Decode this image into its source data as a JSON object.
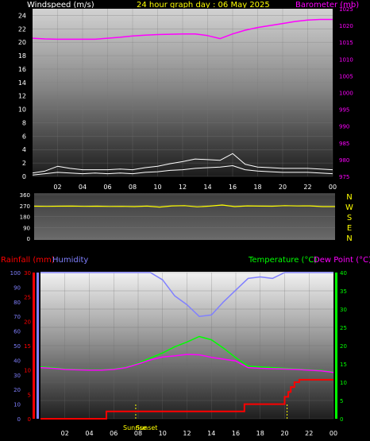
{
  "header": {
    "wind_label": "Windspeed (m/s)",
    "title": "24 hour graph day : 06 May 2025",
    "baro_label": "Barometer (mb)"
  },
  "colors": {
    "wind": "#ffffff",
    "baro": "#ff00ff",
    "winddir": "#ffff00",
    "humidity": "#8080ff",
    "temperature": "#00ff00",
    "dewpoint": "#ff00ff",
    "rainfall": "#ff0000",
    "axis_labels": "#ffffff",
    "temp_axis": "#00ff00",
    "sun_marker": "#ffff00"
  },
  "footer": {
    "rain_label": "Rainfall (mm)",
    "hum_label": "Humidity",
    "temp_label": "Temperature (°C)",
    "dew_label": "Dew Point (°C)",
    "sunrise_label": "Sunrise",
    "sunset_label": "Sunset"
  },
  "chart_data": [
    {
      "type": "line",
      "x_ticks": [
        "02",
        "04",
        "06",
        "08",
        "10",
        "12",
        "14",
        "16",
        "18",
        "20",
        "22",
        "00"
      ],
      "xlim": [
        0,
        24
      ],
      "left_axis": {
        "label": "Windspeed (m/s)",
        "ticks": [
          0,
          2,
          4,
          6,
          8,
          10,
          12,
          14,
          16,
          18,
          20,
          22,
          24
        ],
        "ylim": [
          0,
          25
        ]
      },
      "right_axis": {
        "label": "Barometer (mb)",
        "ticks": [
          975,
          980,
          985,
          990,
          995,
          1000,
          1005,
          1010,
          1015,
          1020,
          1025
        ],
        "ylim": [
          975,
          1025
        ]
      },
      "series": [
        {
          "name": "Barometer (mb)",
          "axis": "right",
          "x": [
            0,
            1,
            2,
            3,
            4,
            5,
            6,
            7,
            8,
            9,
            10,
            11,
            12,
            13,
            14,
            15,
            16,
            17,
            18,
            19,
            20,
            21,
            22,
            23,
            24
          ],
          "values": [
            1016.2,
            1016.0,
            1015.9,
            1015.9,
            1015.9,
            1015.9,
            1016.2,
            1016.5,
            1016.9,
            1017.1,
            1017.3,
            1017.4,
            1017.5,
            1017.5,
            1017.0,
            1016.1,
            1017.5,
            1018.6,
            1019.4,
            1020.0,
            1020.6,
            1021.2,
            1021.6,
            1021.8,
            1021.8
          ]
        },
        {
          "name": "Windspeed (m/s)",
          "axis": "left",
          "x": [
            0,
            1,
            2,
            3,
            4,
            5,
            6,
            7,
            8,
            9,
            10,
            11,
            12,
            13,
            14,
            15,
            16,
            17,
            18,
            19,
            20,
            21,
            22,
            23,
            24
          ],
          "values": [
            0.2,
            0.4,
            0.6,
            0.5,
            0.4,
            0.5,
            0.4,
            0.5,
            0.4,
            0.6,
            0.7,
            0.9,
            1.0,
            1.2,
            1.3,
            1.4,
            1.6,
            1.0,
            0.8,
            0.7,
            0.6,
            0.6,
            0.6,
            0.5,
            0.4
          ]
        },
        {
          "name": "Windspeed gust (m/s)",
          "axis": "left",
          "x": [
            0,
            1,
            2,
            3,
            4,
            5,
            6,
            7,
            8,
            9,
            10,
            11,
            12,
            13,
            14,
            15,
            16,
            17,
            18,
            19,
            20,
            21,
            22,
            23,
            24
          ],
          "values": [
            0.5,
            0.8,
            1.5,
            1.2,
            1.0,
            1.0,
            1.0,
            1.1,
            1.0,
            1.3,
            1.5,
            1.9,
            2.2,
            2.6,
            2.5,
            2.4,
            3.4,
            1.8,
            1.4,
            1.3,
            1.2,
            1.2,
            1.2,
            1.1,
            1.0
          ]
        }
      ]
    },
    {
      "type": "line",
      "x_ticks": [
        "02",
        "04",
        "06",
        "08",
        "10",
        "12",
        "14",
        "16",
        "18",
        "20",
        "22",
        "00"
      ],
      "xlim": [
        0,
        24
      ],
      "left_axis": {
        "ticks": [
          0,
          90,
          180,
          270,
          360
        ],
        "ylim": [
          0,
          360
        ]
      },
      "right_axis_labels": [
        "N",
        "W",
        "S",
        "E",
        "N"
      ],
      "series": [
        {
          "name": "Wind direction",
          "axis": "left",
          "x": [
            0,
            1,
            2,
            3,
            4,
            5,
            6,
            7,
            8,
            9,
            10,
            11,
            12,
            13,
            14,
            15,
            16,
            17,
            18,
            19,
            20,
            21,
            22,
            23,
            24
          ],
          "values": [
            265,
            264,
            265,
            266,
            264,
            265,
            263,
            264,
            262,
            266,
            258,
            268,
            270,
            260,
            266,
            275,
            262,
            268,
            266,
            265,
            270,
            267,
            268,
            262,
            262
          ]
        }
      ]
    },
    {
      "type": "line",
      "x_ticks": [
        "02",
        "04",
        "06",
        "08",
        "10",
        "12",
        "14",
        "16",
        "18",
        "20",
        "22",
        "00"
      ],
      "xlim": [
        0,
        24
      ],
      "left_axis": {
        "label": "Rainfall (mm)",
        "ticks": [
          0,
          5,
          10,
          15,
          20,
          25,
          30
        ],
        "ylim": [
          0,
          30
        ]
      },
      "hum_axis": {
        "label": "Humidity",
        "ticks": [
          0,
          10,
          20,
          30,
          40,
          50,
          60,
          70,
          80,
          90,
          100
        ],
        "ylim": [
          0,
          100
        ]
      },
      "right_axis": {
        "label": "Temperature (°C)",
        "ticks": [
          0,
          5,
          10,
          15,
          20,
          25,
          30,
          35,
          40
        ],
        "ylim": [
          0,
          40
        ]
      },
      "sunrise_hour": 7.8,
      "sunset_hour": 20.2,
      "series": [
        {
          "name": "Humidity",
          "axis": "hum",
          "x": [
            0,
            1,
            2,
            3,
            4,
            5,
            6,
            7,
            8,
            9,
            10,
            11,
            12,
            13,
            14,
            15,
            16,
            17,
            18,
            19,
            20,
            21,
            22,
            23,
            24
          ],
          "values": [
            100,
            100,
            100,
            100,
            100,
            100,
            100,
            100,
            100,
            100,
            95,
            84,
            78,
            70,
            71,
            80,
            88,
            96,
            97,
            96,
            100,
            100,
            100,
            100,
            100
          ]
        },
        {
          "name": "Temperature (°C)",
          "axis": "right",
          "x": [
            0,
            1,
            2,
            3,
            4,
            5,
            6,
            7,
            8,
            9,
            10,
            11,
            12,
            13,
            14,
            15,
            16,
            17,
            18,
            19,
            20,
            21,
            22,
            23,
            24
          ],
          "values": [
            14.2,
            14.0,
            13.6,
            13.5,
            13.4,
            13.4,
            13.6,
            14.1,
            15.2,
            16.6,
            18.0,
            19.7,
            21.0,
            22.5,
            21.6,
            19.3,
            16.7,
            14.4,
            14.2,
            14.0,
            13.8,
            13.6,
            13.4,
            13.2,
            12.8
          ]
        },
        {
          "name": "Dew Point (°C)",
          "axis": "right",
          "x": [
            0,
            1,
            2,
            3,
            4,
            5,
            6,
            7,
            8,
            9,
            10,
            11,
            12,
            13,
            14,
            15,
            16,
            17,
            18,
            19,
            20,
            21,
            22,
            23,
            24
          ],
          "values": [
            14.0,
            13.8,
            13.5,
            13.4,
            13.3,
            13.3,
            13.5,
            14.0,
            15.0,
            16.1,
            16.9,
            17.2,
            17.6,
            17.5,
            16.8,
            16.3,
            15.8,
            14.0,
            13.8,
            13.7,
            13.6,
            13.5,
            13.3,
            13.1,
            12.7
          ]
        },
        {
          "name": "Rainfall (mm)",
          "axis": "left",
          "step": true,
          "x": [
            0,
            5.3,
            5.4,
            15.7,
            15.8,
            16.6,
            16.7,
            19.9,
            20.0,
            20.3,
            20.5,
            20.8,
            21.2,
            24
          ],
          "values": [
            0,
            0,
            1.5,
            1.5,
            1.5,
            1.5,
            3.0,
            3.0,
            4.5,
            5.5,
            6.5,
            7.5,
            8.0,
            8.0
          ]
        }
      ]
    }
  ]
}
